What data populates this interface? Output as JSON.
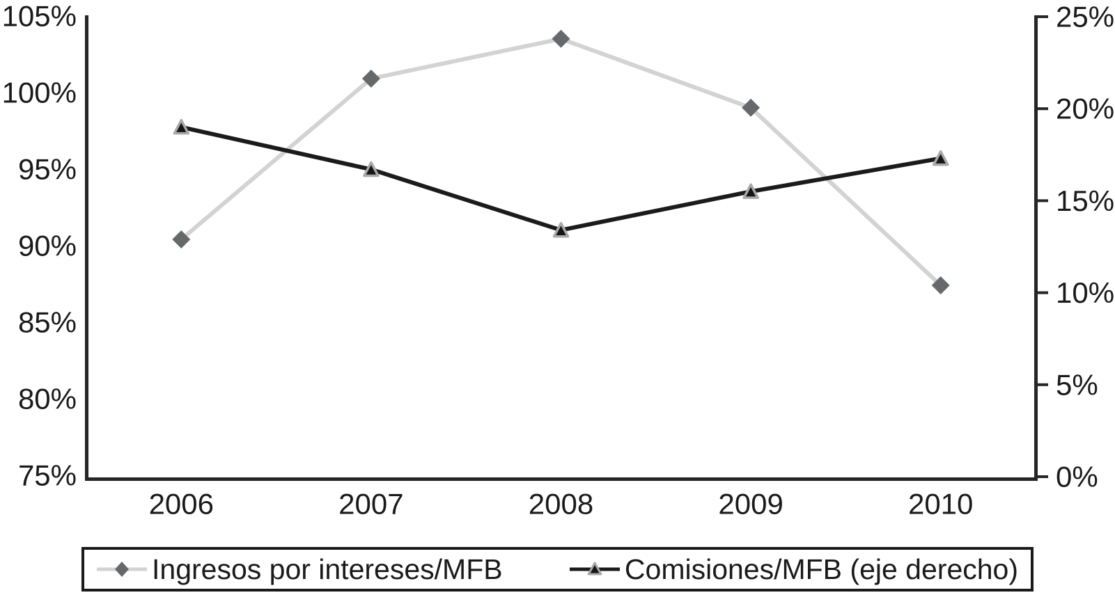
{
  "chart_data": {
    "type": "line",
    "title": "",
    "xlabel": "",
    "ylabel_left": "",
    "ylabel_right": "",
    "categories": [
      "2006",
      "2007",
      "2008",
      "2009",
      "2010"
    ],
    "series": [
      {
        "name": "Ingresos por intereses/MFB",
        "axis": "left",
        "marker": "diamond",
        "unit": "%",
        "values": [
          90.5,
          101.0,
          103.6,
          99.1,
          87.5
        ],
        "line_color": "#d3d3d3",
        "marker_color": "#66696c"
      },
      {
        "name": "Comisiones/MFB (eje derecho)",
        "axis": "right",
        "marker": "triangle",
        "unit": "%",
        "values": [
          19.0,
          16.7,
          13.4,
          15.5,
          17.3
        ],
        "line_color": "#1b1b1b",
        "marker_color": "#161616",
        "marker_edge_color": "#a9a9a9"
      }
    ],
    "left_axis": {
      "min": 75,
      "max": 105,
      "tick_step": 5,
      "tick_labels": [
        "105%",
        "100%",
        "95%",
        "90%",
        "85%",
        "80%",
        "75%"
      ]
    },
    "right_axis": {
      "min": 0,
      "max": 25,
      "tick_step": 5,
      "tick_labels": [
        "25%",
        "20%",
        "15%",
        "10%",
        "5%",
        "0%"
      ]
    },
    "legend": {
      "position": "bottom"
    },
    "grid": false,
    "axis_color": "#262626",
    "text_color": "#1a1a1a",
    "background": "#ffffff"
  }
}
